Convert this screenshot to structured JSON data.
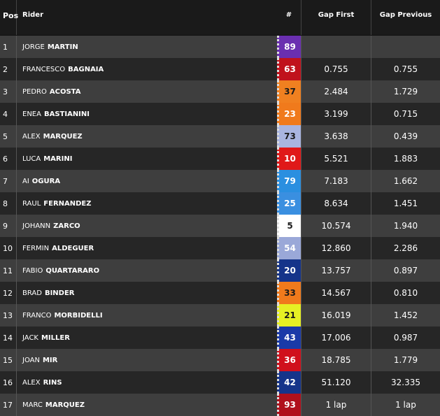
{
  "header": {
    "pos": "Pos",
    "rider": "Rider",
    "num": "#",
    "gap_first": "Gap First",
    "gap_previous": "Gap Previous"
  },
  "rows": [
    {
      "pos": "1",
      "first": "JORGE",
      "last": "MARTIN",
      "num": "89",
      "color": "#6a2fb0",
      "text": "#ffffff",
      "gap1": "",
      "gap2": ""
    },
    {
      "pos": "2",
      "first": "FRANCESCO",
      "last": "BAGNAIA",
      "num": "63",
      "color": "#c0121c",
      "text": "#ffffff",
      "gap1": "0.755",
      "gap2": "0.755"
    },
    {
      "pos": "3",
      "first": "PEDRO",
      "last": "ACOSTA",
      "num": "37",
      "color": "#f08020",
      "text": "#1a1a1a",
      "gap1": "2.484",
      "gap2": "1.729"
    },
    {
      "pos": "4",
      "first": "ENEA",
      "last": "BASTIANINI",
      "num": "23",
      "color": "#f07a1c",
      "text": "#ffffff",
      "gap1": "3.199",
      "gap2": "0.715"
    },
    {
      "pos": "5",
      "first": "ALEX",
      "last": "MARQUEZ",
      "num": "73",
      "color": "#a9b5e0",
      "text": "#1a1a1a",
      "gap1": "3.638",
      "gap2": "0.439"
    },
    {
      "pos": "6",
      "first": "LUCA",
      "last": "MARINI",
      "num": "10",
      "color": "#e01818",
      "text": "#ffffff",
      "gap1": "5.521",
      "gap2": "1.883"
    },
    {
      "pos": "7",
      "first": "AI",
      "last": "OGURA",
      "num": "79",
      "color": "#2a8fe0",
      "text": "#ffffff",
      "gap1": "7.183",
      "gap2": "1.662"
    },
    {
      "pos": "8",
      "first": "RAUL",
      "last": "FERNANDEZ",
      "num": "25",
      "color": "#3a8fe0",
      "text": "#ffffff",
      "gap1": "8.634",
      "gap2": "1.451"
    },
    {
      "pos": "9",
      "first": "JOHANN",
      "last": "ZARCO",
      "num": "5",
      "color": "#ffffff",
      "text": "#1a1a1a",
      "gap1": "10.574",
      "gap2": "1.940"
    },
    {
      "pos": "10",
      "first": "FERMIN",
      "last": "ALDEGUER",
      "num": "54",
      "color": "#9aa8d8",
      "text": "#ffffff",
      "gap1": "12.860",
      "gap2": "2.286"
    },
    {
      "pos": "11",
      "first": "FABIO",
      "last": "QUARTARARO",
      "num": "20",
      "color": "#15348a",
      "text": "#ffffff",
      "gap1": "13.757",
      "gap2": "0.897"
    },
    {
      "pos": "12",
      "first": "BRAD",
      "last": "BINDER",
      "num": "33",
      "color": "#f07a1c",
      "text": "#1a1a1a",
      "gap1": "14.567",
      "gap2": "0.810"
    },
    {
      "pos": "13",
      "first": "FRANCO",
      "last": "MORBIDELLI",
      "num": "21",
      "color": "#e6f024",
      "text": "#1a1a1a",
      "gap1": "16.019",
      "gap2": "1.452"
    },
    {
      "pos": "14",
      "first": "JACK",
      "last": "MILLER",
      "num": "43",
      "color": "#1a3aa8",
      "text": "#ffffff",
      "gap1": "17.006",
      "gap2": "0.987"
    },
    {
      "pos": "15",
      "first": "JOAN",
      "last": "MIR",
      "num": "36",
      "color": "#d0101c",
      "text": "#ffffff",
      "gap1": "18.785",
      "gap2": "1.779"
    },
    {
      "pos": "16",
      "first": "ALEX",
      "last": "RINS",
      "num": "42",
      "color": "#15348a",
      "text": "#ffffff",
      "gap1": "51.120",
      "gap2": "32.335"
    },
    {
      "pos": "17",
      "first": "MARC",
      "last": "MARQUEZ",
      "num": "93",
      "color": "#b0101c",
      "text": "#ffffff",
      "gap1": "1 lap",
      "gap2": "1 lap"
    }
  ]
}
